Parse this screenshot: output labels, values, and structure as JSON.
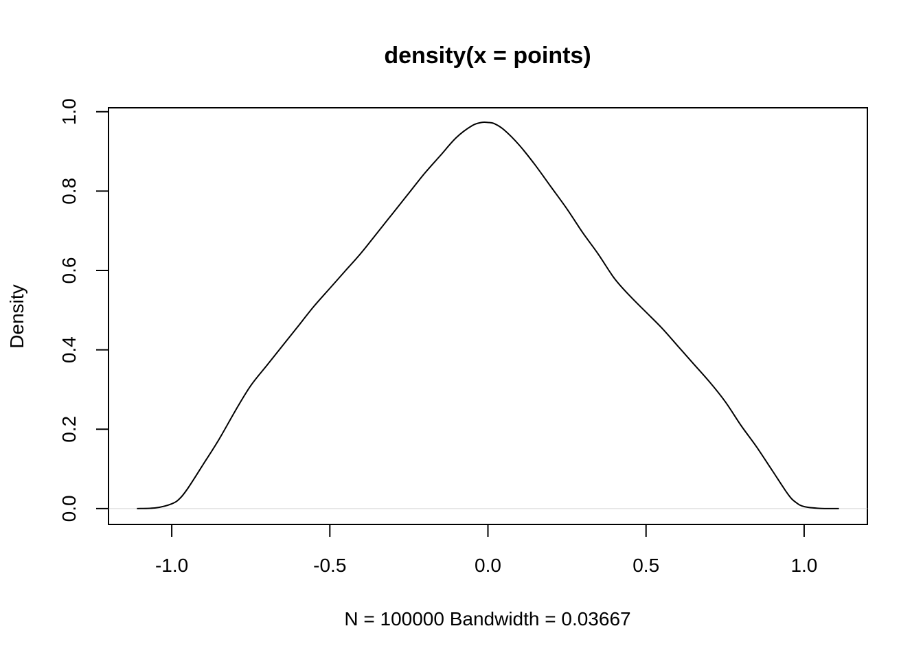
{
  "chart_data": {
    "type": "line",
    "title": "density(x = points)",
    "xlabel": "N = 100000   Bandwidth = 0.03667",
    "ylabel": "Density",
    "xlim": [
      -1.2,
      1.2
    ],
    "ylim": [
      -0.04,
      1.01
    ],
    "x_ticks": [
      "-1.0",
      "-0.5",
      "0.0",
      "0.5",
      "1.0"
    ],
    "y_ticks": [
      "0.0",
      "0.2",
      "0.4",
      "0.6",
      "0.8",
      "1.0"
    ],
    "grid": false,
    "legend": "none",
    "zero_line_color": "#d3d3d3",
    "line_color": "#000000",
    "series": [
      {
        "x": [
          -1.11,
          -1.05,
          -1.0,
          -0.975,
          -0.95,
          -0.9,
          -0.85,
          -0.8,
          -0.75,
          -0.7,
          -0.65,
          -0.6,
          -0.55,
          -0.5,
          -0.45,
          -0.4,
          -0.35,
          -0.3,
          -0.25,
          -0.2,
          -0.15,
          -0.1,
          -0.05,
          -0.02,
          0.0,
          0.02,
          0.05,
          0.1,
          0.15,
          0.2,
          0.25,
          0.3,
          0.35,
          0.4,
          0.45,
          0.5,
          0.55,
          0.6,
          0.65,
          0.7,
          0.75,
          0.8,
          0.85,
          0.9,
          0.95,
          0.975,
          1.0,
          1.05,
          1.11
        ],
        "y": [
          0.0,
          0.002,
          0.012,
          0.025,
          0.05,
          0.112,
          0.175,
          0.245,
          0.31,
          0.36,
          0.41,
          0.46,
          0.51,
          0.555,
          0.6,
          0.645,
          0.695,
          0.745,
          0.795,
          0.845,
          0.89,
          0.935,
          0.965,
          0.973,
          0.973,
          0.97,
          0.955,
          0.915,
          0.865,
          0.81,
          0.755,
          0.695,
          0.64,
          0.58,
          0.535,
          0.495,
          0.455,
          0.41,
          0.365,
          0.32,
          0.27,
          0.21,
          0.155,
          0.095,
          0.035,
          0.015,
          0.005,
          0.0005,
          0.0
        ]
      }
    ]
  }
}
